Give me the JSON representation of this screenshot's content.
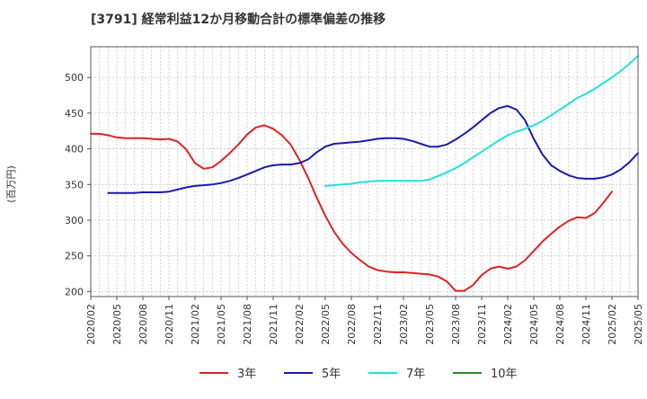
{
  "chart_data": {
    "type": "line",
    "title": "[3791]  経常利益12か月移動合計の標準偏差の推移",
    "ylabel": "(百万円)",
    "ylim": [
      193,
      543
    ],
    "yticks": [
      200,
      250,
      300,
      350,
      400,
      450,
      500
    ],
    "xlim": [
      "2020-02",
      "2025-05"
    ],
    "x_tick_labels": [
      "2020/02",
      "2020/05",
      "2020/08",
      "2020/11",
      "2021/02",
      "2021/05",
      "2021/08",
      "2021/11",
      "2022/02",
      "2022/05",
      "2022/08",
      "2022/11",
      "2023/02",
      "2023/05",
      "2023/08",
      "2023/11",
      "2024/02",
      "2024/05",
      "2024/08",
      "2024/11",
      "2025/02",
      "2025/05"
    ],
    "grid": true,
    "legend_position": "bottom",
    "series": [
      {
        "name": "3年",
        "color": "#dd2222",
        "start": "2020-02",
        "values": [
          421,
          421,
          419,
          416,
          415,
          415,
          415,
          414,
          413,
          414,
          410,
          399,
          380,
          372,
          374,
          383,
          394,
          406,
          420,
          430,
          433,
          428,
          419,
          406,
          385,
          360,
          332,
          306,
          284,
          267,
          254,
          244,
          235,
          230,
          228,
          227,
          227,
          226,
          225,
          224,
          221,
          214,
          201,
          201,
          209,
          223,
          232,
          235,
          232,
          235,
          244,
          257,
          270,
          281,
          291,
          299,
          304,
          303,
          310,
          324,
          340
        ]
      },
      {
        "name": "5年",
        "color": "#1a1aaa",
        "start": "2020-04",
        "values": [
          338,
          338,
          338,
          338,
          339,
          339,
          339,
          340,
          343,
          346,
          348,
          349,
          350,
          352,
          355,
          359,
          364,
          369,
          374,
          377,
          378,
          378,
          380,
          385,
          395,
          403,
          407,
          408,
          409,
          410,
          412,
          414,
          415,
          415,
          414,
          411,
          407,
          403,
          403,
          406,
          413,
          421,
          430,
          440,
          450,
          457,
          460,
          455,
          440,
          414,
          392,
          377,
          369,
          363,
          359,
          358,
          358,
          360,
          364,
          371,
          381,
          394
        ]
      },
      {
        "name": "7年",
        "color": "#22e0e0",
        "start": "2022-05",
        "values": [
          348,
          349,
          350,
          351,
          353,
          354,
          355,
          355,
          355,
          355,
          355,
          355,
          357,
          362,
          367,
          373,
          380,
          388,
          396,
          404,
          412,
          419,
          424,
          428,
          433,
          439,
          447,
          455,
          463,
          471,
          477,
          484,
          492,
          500,
          509,
          519,
          530
        ]
      },
      {
        "name": "10年",
        "color": "#228b22",
        "start": "2025-02",
        "values": []
      }
    ]
  }
}
